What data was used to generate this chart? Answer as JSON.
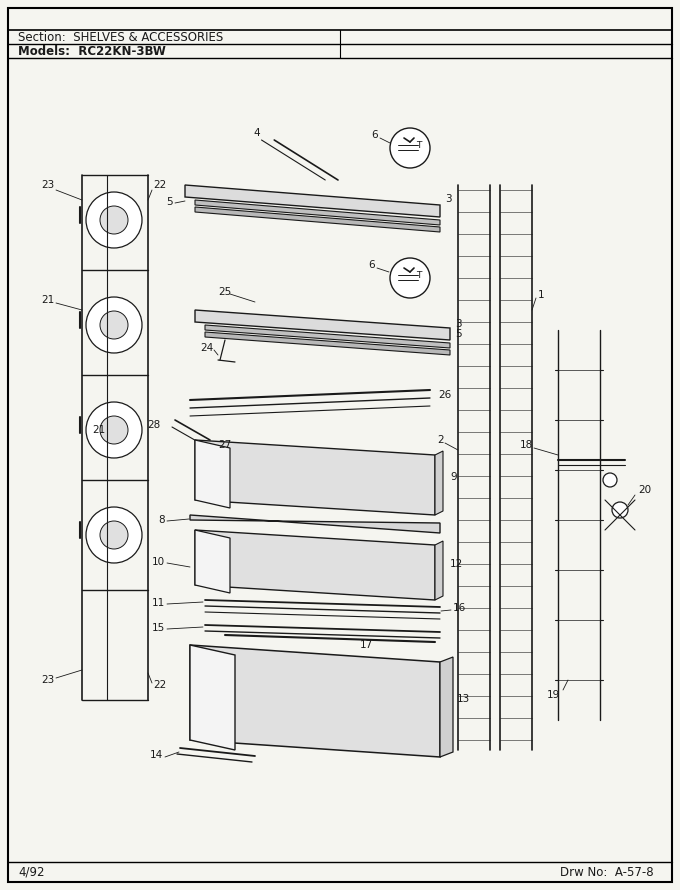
{
  "title_section": "Section:  SHELVES & ACCESSORIES",
  "title_model": "Models:  RC22KN-3BW",
  "footer_left": "4/92",
  "footer_right": "Drw No:  A-57-8",
  "bg_color": "#f5f5f0",
  "lc": "#1a1a1a"
}
